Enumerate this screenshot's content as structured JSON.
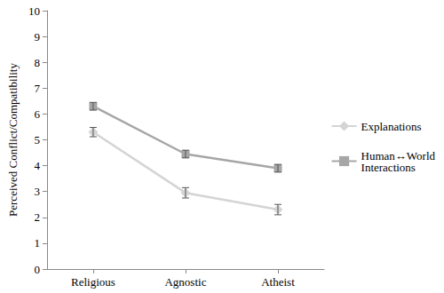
{
  "chart_data": {
    "type": "line",
    "y_label": "Perceived Conflict/Compatibility",
    "categories": [
      "Religious",
      "Agnostic",
      "Atheist"
    ],
    "series": [
      {
        "name": "Explanations",
        "color": "#d4d4d4",
        "marker": "diamond",
        "values": [
          5.3,
          2.95,
          2.3
        ],
        "errors": [
          0.18,
          0.2,
          0.2
        ]
      },
      {
        "name": "Human↔World Interactions",
        "color": "#a6a6a6",
        "marker": "square",
        "values": [
          6.3,
          4.45,
          3.9
        ],
        "errors": [
          0.15,
          0.15,
          0.15
        ]
      }
    ],
    "ylim": [
      0,
      10
    ],
    "yticks": [
      0,
      1,
      2,
      3,
      4,
      5,
      6,
      7,
      8,
      9,
      10
    ],
    "grid": false,
    "legend": "right"
  }
}
